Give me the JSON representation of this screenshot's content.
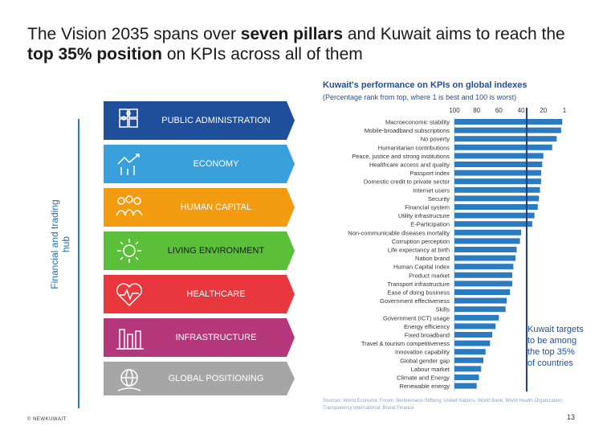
{
  "title": {
    "part1": "The Vision 2035 spans over ",
    "bold1": "seven pillars",
    "part2": " and Kuwait aims to reach the ",
    "bold2": "top 35% position",
    "part3": " on KPIs across all of them"
  },
  "side_label": "Financial and trading hub",
  "pillars": [
    {
      "label": "PUBLIC ADMINISTRATION",
      "color": "#1f4e9b",
      "icon": "puzzle-icon"
    },
    {
      "label": "ECONOMY",
      "color": "#3aa0dc",
      "icon": "growth-chart-icon"
    },
    {
      "label": "HUMAN CAPITAL",
      "color": "#f39c12",
      "icon": "people-icon"
    },
    {
      "label": "LIVING ENVIRONMENT",
      "color": "#5bbf3a",
      "icon": "sun-icon"
    },
    {
      "label": "HEALTHCARE",
      "color": "#e8383d",
      "icon": "heart-pulse-icon"
    },
    {
      "label": "INFRASTRUCTURE",
      "color": "#b5377c",
      "icon": "factory-icon"
    },
    {
      "label": "GLOBAL POSITIONING",
      "color": "#a6a6a6",
      "icon": "globe-hand-icon"
    }
  ],
  "chart_data": {
    "type": "bar",
    "orientation": "horizontal",
    "title": "Kuwait's performance on KPIs on global indexes",
    "subtitle": "(Percentage rank from top, where 1 is best and 100 is worst)",
    "axis_ticks": [
      "100",
      "80",
      "60",
      "40",
      "20",
      "1"
    ],
    "xlim": [
      100,
      1
    ],
    "target_line": 35,
    "bar_color": "#2a7bc0",
    "target_color": "#1f3c8a",
    "categories": [
      "Macroeconomic stability",
      "Mobile-broadband subscriptions",
      "No poverty",
      "Humanitarian contributions",
      "Peace, justice and strong institutions",
      "Healthcare access and quality",
      "Passport index",
      "Domestic credit to private sector",
      "Internet users",
      "Security",
      "Financial system",
      "Utility infrastructure",
      "E-Participation",
      "Non-communicable diseases mortality",
      "Corruption perception",
      "Life expectancy at birth",
      "Nation brand",
      "Human Capital Index",
      "Product market",
      "Transport infrastructure",
      "Ease of doing business",
      "Government effectiveness",
      "Skills",
      "Government (ICT) usage",
      "Energy efficiency",
      "Fixed broadband",
      "Travel & tourism competitiveness",
      "Innovation capability",
      "Global gender gap",
      "Labour market",
      "Climate and Energy",
      "Renewable energy"
    ],
    "values": [
      3,
      4,
      8,
      12,
      20,
      21,
      22,
      22,
      23,
      24,
      25,
      28,
      30,
      40,
      41,
      44,
      45,
      47,
      48,
      48,
      50,
      53,
      54,
      60,
      63,
      66,
      68,
      72,
      74,
      76,
      78,
      80
    ]
  },
  "callout": {
    "line1": "Kuwait targets to be among the top",
    "pct": "35%",
    "line2": "of countries"
  },
  "sources": "Sources: World Economic Forum; Bertelsmann Stiftung; United Nations; World Bank; World Health Organization; Transparency International; Brand Finance",
  "footer_left": "© NEWKUWAIT",
  "page_number": "13"
}
